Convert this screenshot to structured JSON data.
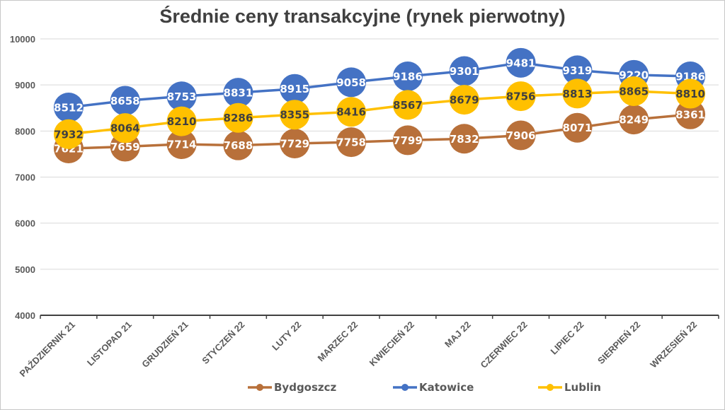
{
  "chart_data": {
    "type": "line",
    "title": "Średnie ceny transakcyjne (rynek pierwotny)",
    "xlabel": "",
    "ylabel": "",
    "ylim": [
      4000,
      10000
    ],
    "yticks": [
      4000,
      5000,
      6000,
      7000,
      8000,
      9000,
      10000
    ],
    "grid": true,
    "legend_position": "bottom",
    "categories": [
      "PAŹDZIERNIK 21",
      "LISTOPAD 21",
      "GRUDZIEŃ 21",
      "STYCZEŃ 22",
      "LUTY 22",
      "MARZEC 22",
      "KWIECIEŃ 22",
      "MAJ 22",
      "CZERWIEC 22",
      "LIPIEC 22",
      "SIERPIEŃ 22",
      "WRZESIEŃ 22"
    ],
    "series": [
      {
        "name": "Bydgoszcz",
        "color": "#B8703A",
        "label_color": "#ffffff",
        "values": [
          7621,
          7659,
          7714,
          7688,
          7729,
          7758,
          7799,
          7832,
          7906,
          8071,
          8249,
          8361
        ]
      },
      {
        "name": "Katowice",
        "color": "#4472C4",
        "label_color": "#ffffff",
        "values": [
          8512,
          8658,
          8753,
          8831,
          8915,
          9058,
          9186,
          9301,
          9481,
          9319,
          9220,
          9186
        ]
      },
      {
        "name": "Lublin",
        "color": "#FFC000",
        "label_color": "#404040",
        "values": [
          7932,
          8064,
          8210,
          8286,
          8355,
          8416,
          8567,
          8679,
          8756,
          8813,
          8865,
          8810
        ]
      }
    ]
  }
}
